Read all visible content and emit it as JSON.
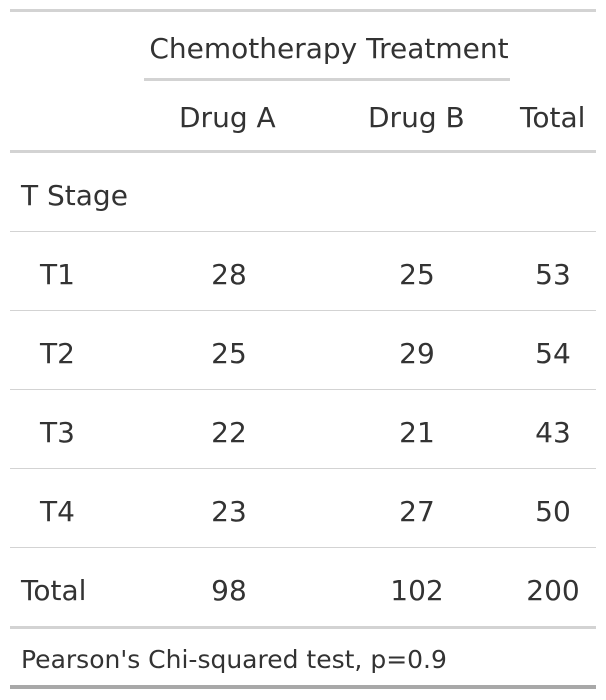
{
  "table": {
    "spanner": "Chemotherapy Treatment",
    "columns": [
      "Drug A",
      "Drug B",
      "Total"
    ],
    "group_label": "T Stage",
    "rows": [
      {
        "label": "T1",
        "values": [
          "28",
          "25",
          "53"
        ]
      },
      {
        "label": "T2",
        "values": [
          "25",
          "29",
          "54"
        ]
      },
      {
        "label": "T3",
        "values": [
          "22",
          "21",
          "43"
        ]
      },
      {
        "label": "T4",
        "values": [
          "23",
          "27",
          "50"
        ]
      },
      {
        "label": "Total",
        "values": [
          "98",
          "102",
          "200"
        ]
      }
    ],
    "footnote": "Pearson's Chi-squared test, p=0.9"
  },
  "chart_data": {
    "type": "table",
    "title": "",
    "columns": [
      "Drug A",
      "Drug B",
      "Total"
    ],
    "rows": [
      {
        "label": "T1",
        "values": [
          28,
          25,
          53
        ]
      },
      {
        "label": "T2",
        "values": [
          25,
          29,
          54
        ]
      },
      {
        "label": "T3",
        "values": [
          22,
          21,
          43
        ]
      },
      {
        "label": "T4",
        "values": [
          23,
          27,
          50
        ]
      },
      {
        "label": "Total",
        "values": [
          98,
          102,
          200
        ]
      }
    ]
  }
}
